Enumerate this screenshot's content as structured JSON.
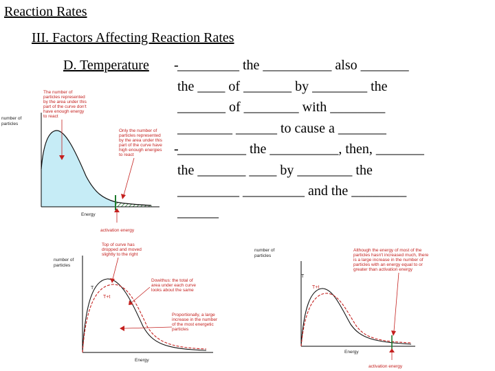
{
  "slide": {
    "title": "Reaction Rates",
    "subtitle": "III.  Factors Affecting Reaction Rates",
    "topic": "D.  Temperature"
  },
  "bullets": [
    {
      "dash": "-",
      "lines": [
        "_________ the __________ also _______",
        "the ____ of _______ by ________ the",
        "_______ of ________ with ________",
        "________ ______ to cause a _______"
      ]
    },
    {
      "dash": "-",
      "lines": [
        "__________ the __________, then, _______",
        "the _______ ____ by ________ the",
        "_________ _________ and the ________",
        "______"
      ]
    }
  ],
  "figure1": {
    "ylabel": [
      "number of",
      "particles"
    ],
    "xlabel": "Energy",
    "note_top": [
      "The number of",
      "particles represented",
      "by the area under this",
      "part of the curve don't",
      "have enough energy",
      "to react"
    ],
    "note_right": [
      "Only the number of",
      "particles represented",
      "by the area under this",
      "part of the curve have",
      "high enough energies",
      "to react"
    ],
    "activation": "activation energy",
    "fill_color": "#c6ecf6",
    "hatch_color": "#1c7a2c"
  },
  "figure2": {
    "ylabel": [
      "number of",
      "particles"
    ],
    "xlabel": "Energy",
    "curve_T": "T",
    "curve_T1": "T+t",
    "note_top": [
      "Top of curve has",
      "dropped and moved",
      "slightly to the right"
    ],
    "note_right": [
      "Dowithus: the total of",
      "area under each curve",
      "looks about the same"
    ],
    "note_bottom": [
      "Proportionally, a large",
      "increase in the number",
      "of the most energetic",
      "particles"
    ]
  },
  "figure3": {
    "ylabel": [
      "number of",
      "particles"
    ],
    "xlabel": "Energy",
    "curve_T": "T",
    "curve_T1": "T+t",
    "note": [
      "Although the energy of most of the",
      "particles hasn't increased much, there",
      "is a large increase in the number of",
      "particles with an energy equal to or",
      "greater than activation energy"
    ],
    "activation": "activation energy"
  }
}
